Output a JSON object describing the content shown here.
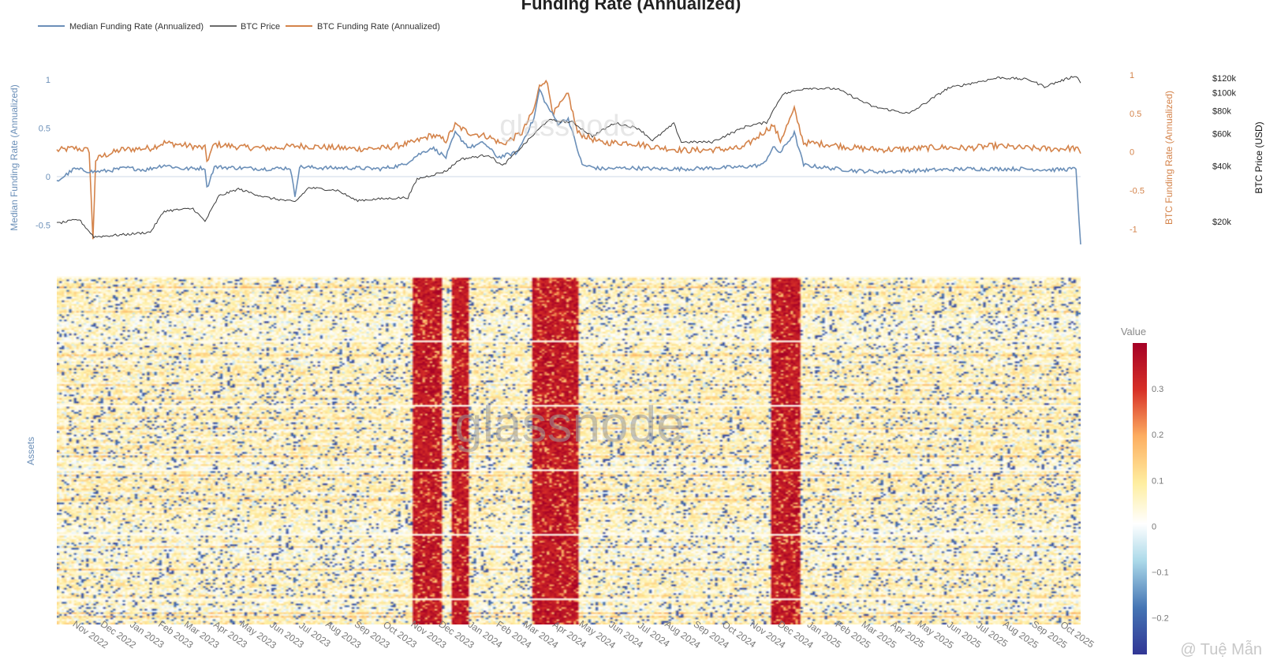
{
  "title": "Funding Rate (Annualized)",
  "watermark": "glassnode",
  "credit": "@ Tuệ Mẫn",
  "colors": {
    "median": "#6b8fb8",
    "btc_price": "#3a3a3a",
    "btc_funding": "#d4834a",
    "tick_left": "#6b8fb8",
    "tick_right_orange": "#d4834a"
  },
  "legend": [
    {
      "label": "Median Funding Rate (Annualized)",
      "color": "#6b8fb8"
    },
    {
      "label": "BTC Price",
      "color": "#3a3a3a"
    },
    {
      "label": "BTC Funding Rate (Annualized)",
      "color": "#d4834a"
    }
  ],
  "chart_data": [
    {
      "type": "line",
      "x_ticks": [
        "Nov 2022",
        "Dec 2022",
        "Jan 2023",
        "Feb 2023",
        "Mar 2023",
        "Apr 2023",
        "May 2023",
        "Jun 2023",
        "Jul 2023",
        "Aug 2023",
        "Sep 2023",
        "Oct 2023",
        "Nov 2023",
        "Dec 2023",
        "Jan 2024",
        "Feb 2024",
        "Mar 2024",
        "Apr 2024",
        "May 2024",
        "Jun 2024",
        "Jul 2024",
        "Aug 2024",
        "Sep 2024",
        "Oct 2024",
        "Nov 2024",
        "Dec 2024",
        "Jan 2025",
        "Feb 2025",
        "Mar 2025",
        "Apr 2025",
        "May 2025",
        "Jun 2025",
        "Jul 2025",
        "Aug 2025",
        "Sep 2025",
        "Oct 2025"
      ],
      "x_range": [
        "2022-10-01",
        "2025-10-10"
      ],
      "y_left": {
        "label": "Median Funding Rate (Annualized)",
        "ticks": [
          "1",
          "0.5",
          "0",
          "-0.5"
        ],
        "range": [
          -0.7,
          1.05
        ]
      },
      "y_right1": {
        "label": "BTC Funding Rate (Annualized)",
        "ticks": [
          "1",
          "0.5",
          "0",
          "-0.5",
          "-1"
        ],
        "range": [
          -1.2,
          1.0
        ]
      },
      "y_right2": {
        "label": "BTC Price (USD)",
        "ticks": [
          "$120k",
          "$100k",
          "$80k",
          "$60k",
          "$40k",
          "$20k"
        ],
        "scale": "log",
        "range": [
          15000,
          125000
        ]
      },
      "series": [
        {
          "name": "Median Funding Rate (Annualized)",
          "axis": "left",
          "points": [
            [
              "2022-10-01",
              -0.05
            ],
            [
              "2022-10-20",
              0.08
            ],
            [
              "2022-11-09",
              0.05
            ],
            [
              "2022-11-25",
              0.06
            ],
            [
              "2022-12-15",
              0.09
            ],
            [
              "2023-01-05",
              0.07
            ],
            [
              "2023-01-25",
              0.12
            ],
            [
              "2023-02-15",
              0.08
            ],
            [
              "2023-03-10",
              0.09
            ],
            [
              "2023-03-12",
              -0.12
            ],
            [
              "2023-03-20",
              0.1
            ],
            [
              "2023-04-15",
              0.09
            ],
            [
              "2023-05-15",
              0.08
            ],
            [
              "2023-06-10",
              0.09
            ],
            [
              "2023-06-15",
              -0.2
            ],
            [
              "2023-06-20",
              0.1
            ],
            [
              "2023-07-15",
              0.09
            ],
            [
              "2023-08-15",
              0.09
            ],
            [
              "2023-09-15",
              0.08
            ],
            [
              "2023-10-10",
              0.12
            ],
            [
              "2023-10-25",
              0.22
            ],
            [
              "2023-11-10",
              0.3
            ],
            [
              "2023-11-25",
              0.2
            ],
            [
              "2023-12-05",
              0.45
            ],
            [
              "2023-12-20",
              0.3
            ],
            [
              "2024-01-05",
              0.35
            ],
            [
              "2024-01-20",
              0.2
            ],
            [
              "2024-02-10",
              0.25
            ],
            [
              "2024-02-28",
              0.6
            ],
            [
              "2024-03-05",
              0.9
            ],
            [
              "2024-03-12",
              0.75
            ],
            [
              "2024-03-25",
              0.55
            ],
            [
              "2024-04-05",
              0.6
            ],
            [
              "2024-04-20",
              0.12
            ],
            [
              "2024-05-10",
              0.08
            ],
            [
              "2024-06-10",
              0.09
            ],
            [
              "2024-07-10",
              0.08
            ],
            [
              "2024-08-10",
              0.08
            ],
            [
              "2024-09-10",
              0.09
            ],
            [
              "2024-10-10",
              0.1
            ],
            [
              "2024-11-01",
              0.12
            ],
            [
              "2024-11-12",
              0.3
            ],
            [
              "2024-11-20",
              0.25
            ],
            [
              "2024-12-05",
              0.45
            ],
            [
              "2024-12-15",
              0.12
            ],
            [
              "2025-01-10",
              0.09
            ],
            [
              "2025-02-10",
              0.06
            ],
            [
              "2025-03-10",
              0.05
            ],
            [
              "2025-04-10",
              0.06
            ],
            [
              "2025-05-10",
              0.07
            ],
            [
              "2025-06-10",
              0.08
            ],
            [
              "2025-07-10",
              0.08
            ],
            [
              "2025-08-10",
              0.08
            ],
            [
              "2025-09-10",
              0.07
            ],
            [
              "2025-10-05",
              0.08
            ],
            [
              "2025-10-10",
              -0.7
            ]
          ]
        },
        {
          "name": "BTC Price",
          "axis": "right2",
          "points": [
            [
              "2022-10-01",
              19500
            ],
            [
              "2022-10-25",
              20500
            ],
            [
              "2022-11-10",
              16500
            ],
            [
              "2022-12-15",
              17000
            ],
            [
              "2023-01-10",
              17500
            ],
            [
              "2023-01-25",
              22800
            ],
            [
              "2023-02-25",
              23500
            ],
            [
              "2023-03-10",
              20000
            ],
            [
              "2023-03-25",
              27500
            ],
            [
              "2023-04-15",
              30000
            ],
            [
              "2023-05-15",
              27000
            ],
            [
              "2023-06-15",
              25500
            ],
            [
              "2023-06-30",
              30500
            ],
            [
              "2023-07-31",
              29500
            ],
            [
              "2023-08-20",
              26000
            ],
            [
              "2023-09-15",
              26500
            ],
            [
              "2023-10-15",
              27000
            ],
            [
              "2023-10-25",
              34000
            ],
            [
              "2023-11-25",
              37500
            ],
            [
              "2023-12-10",
              43500
            ],
            [
              "2024-01-10",
              46000
            ],
            [
              "2024-01-25",
              40000
            ],
            [
              "2024-02-15",
              51000
            ],
            [
              "2024-03-14",
              71000
            ],
            [
              "2024-04-10",
              69000
            ],
            [
              "2024-05-01",
              58000
            ],
            [
              "2024-05-25",
              68500
            ],
            [
              "2024-06-20",
              64000
            ],
            [
              "2024-07-05",
              55000
            ],
            [
              "2024-07-28",
              68000
            ],
            [
              "2024-08-05",
              54000
            ],
            [
              "2024-09-07",
              54000
            ],
            [
              "2024-10-15",
              66000
            ],
            [
              "2024-11-05",
              69000
            ],
            [
              "2024-11-22",
              98000
            ],
            [
              "2024-12-17",
              106000
            ],
            [
              "2025-01-20",
              105000
            ],
            [
              "2025-02-28",
              84000
            ],
            [
              "2025-04-08",
              77000
            ],
            [
              "2025-05-20",
              106000
            ],
            [
              "2025-07-14",
              121000
            ],
            [
              "2025-08-15",
              118000
            ],
            [
              "2025-09-01",
              108000
            ],
            [
              "2025-10-05",
              124000
            ],
            [
              "2025-10-10",
              113000
            ]
          ]
        },
        {
          "name": "BTC Funding Rate (Annualized)",
          "axis": "right1",
          "points": [
            [
              "2022-10-01",
              0.02
            ],
            [
              "2022-10-20",
              0.05
            ],
            [
              "2022-11-05",
              0.02
            ],
            [
              "2022-11-09",
              -1.15
            ],
            [
              "2022-11-12",
              -0.1
            ],
            [
              "2022-11-20",
              -0.05
            ],
            [
              "2022-12-10",
              0.03
            ],
            [
              "2023-01-10",
              0.05
            ],
            [
              "2023-01-25",
              0.12
            ],
            [
              "2023-02-20",
              0.08
            ],
            [
              "2023-03-10",
              0.05
            ],
            [
              "2023-03-12",
              -0.12
            ],
            [
              "2023-03-20",
              0.1
            ],
            [
              "2023-04-20",
              0.06
            ],
            [
              "2023-05-20",
              0.05
            ],
            [
              "2023-06-20",
              0.08
            ],
            [
              "2023-07-20",
              0.06
            ],
            [
              "2023-08-20",
              0.04
            ],
            [
              "2023-09-20",
              0.05
            ],
            [
              "2023-10-20",
              0.12
            ],
            [
              "2023-11-10",
              0.22
            ],
            [
              "2023-11-25",
              0.15
            ],
            [
              "2023-12-05",
              0.35
            ],
            [
              "2023-12-20",
              0.25
            ],
            [
              "2024-01-10",
              0.2
            ],
            [
              "2024-01-25",
              0.1
            ],
            [
              "2024-02-15",
              0.25
            ],
            [
              "2024-02-28",
              0.55
            ],
            [
              "2024-03-05",
              0.85
            ],
            [
              "2024-03-12",
              0.95
            ],
            [
              "2024-03-20",
              0.5
            ],
            [
              "2024-04-05",
              0.75
            ],
            [
              "2024-04-15",
              0.25
            ],
            [
              "2024-05-10",
              0.12
            ],
            [
              "2024-06-10",
              0.12
            ],
            [
              "2024-07-10",
              0.06
            ],
            [
              "2024-08-10",
              0.02
            ],
            [
              "2024-09-10",
              0.03
            ],
            [
              "2024-10-10",
              0.05
            ],
            [
              "2024-11-12",
              0.35
            ],
            [
              "2024-11-20",
              0.15
            ],
            [
              "2024-12-05",
              0.55
            ],
            [
              "2024-12-15",
              0.12
            ],
            [
              "2025-01-10",
              0.1
            ],
            [
              "2025-02-10",
              0.05
            ],
            [
              "2025-03-10",
              0.03
            ],
            [
              "2025-04-10",
              0.04
            ],
            [
              "2025-05-10",
              0.06
            ],
            [
              "2025-06-10",
              0.05
            ],
            [
              "2025-07-10",
              0.08
            ],
            [
              "2025-08-10",
              0.05
            ],
            [
              "2025-09-10",
              0.04
            ],
            [
              "2025-10-05",
              0.05
            ],
            [
              "2025-10-10",
              -0.02
            ]
          ]
        }
      ]
    },
    {
      "type": "heatmap",
      "ylabel": "Assets",
      "colorbar": {
        "title": "Value",
        "ticks": [
          "0.3",
          "0.2",
          "0.1",
          "0",
          "−0.1",
          "−0.2"
        ],
        "range": [
          -0.28,
          0.4
        ]
      },
      "hot_periods": [
        [
          "2023-10-20",
          "2023-11-20"
        ],
        [
          "2023-12-01",
          "2023-12-20"
        ],
        [
          "2024-02-25",
          "2024-04-15"
        ],
        [
          "2024-11-10",
          "2024-12-12"
        ]
      ]
    }
  ]
}
